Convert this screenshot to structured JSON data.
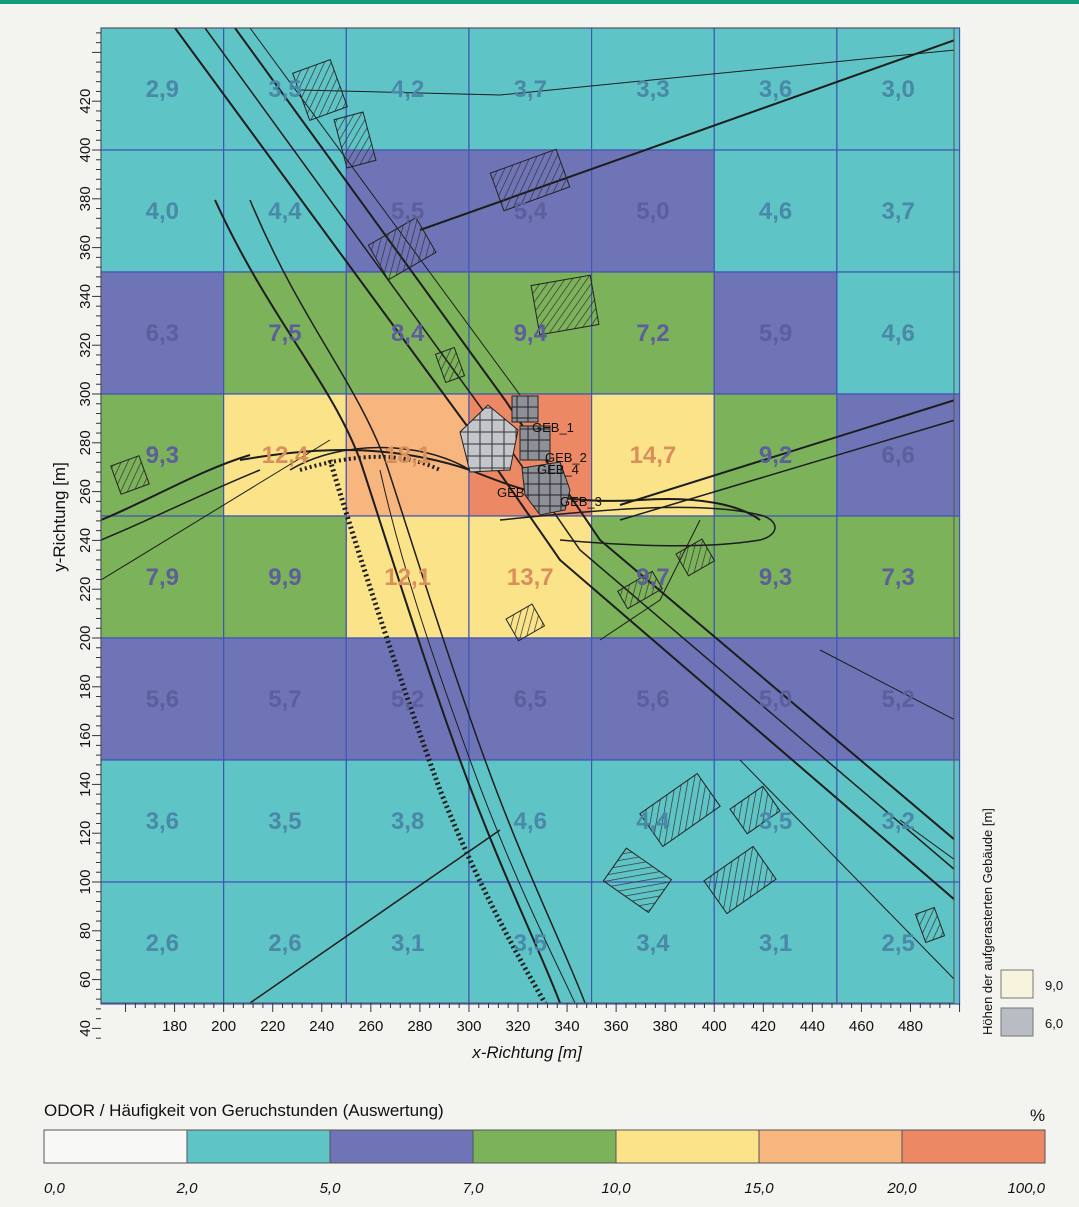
{
  "axes": {
    "x_title": "x-Richtung [m]",
    "y_title": "y-Richtung [m]",
    "x_ticks": [
      180,
      200,
      220,
      240,
      260,
      280,
      300,
      320,
      340,
      360,
      380,
      400,
      420,
      440,
      460,
      480
    ],
    "y_ticks": [
      40,
      60,
      80,
      100,
      120,
      140,
      160,
      180,
      200,
      220,
      240,
      260,
      280,
      300,
      320,
      340,
      360,
      380,
      400,
      420
    ]
  },
  "grid": {
    "x_edges": [
      150,
      200,
      250,
      300,
      350,
      400,
      450,
      500
    ],
    "y_edges": [
      450,
      400,
      350,
      300,
      250,
      200,
      150,
      100,
      50
    ],
    "values": [
      [
        "2,9",
        "3,5",
        "4,2",
        "3,7",
        "3,3",
        "3,6",
        "3,0"
      ],
      [
        "4,0",
        "4,4",
        "5,5",
        "5,4",
        "5,0",
        "4,6",
        "3,7"
      ],
      [
        "6,3",
        "7,5",
        "8,4",
        "9,4",
        "7,2",
        "5,9",
        "4,6"
      ],
      [
        "9,3",
        "12,4",
        "18,1",
        "",
        "14,7",
        "9,2",
        "6,6"
      ],
      [
        "7,9",
        "9,9",
        "12,1",
        "13,7",
        "9,7",
        "9,3",
        "7,3"
      ],
      [
        "5,6",
        "5,7",
        "5,2",
        "6,5",
        "5,6",
        "5,0",
        "5,2"
      ],
      [
        "3,6",
        "3,5",
        "3,8",
        "4,6",
        "4,4",
        "3,5",
        "3,2"
      ],
      [
        "2,6",
        "2,6",
        "3,1",
        "3,5",
        "3,4",
        "3,1",
        "2,5"
      ]
    ]
  },
  "buildings": [
    "GEB_1",
    "GEB_2",
    "GEB_3",
    "GEB_4",
    "GEB"
  ],
  "building_legend": {
    "title": "Höhen der aufgerasterten Gebäude [m]",
    "items": [
      {
        "label": "9,0",
        "color": "#f7f3dc"
      },
      {
        "label": "6,0",
        "color": "#b9bcc2"
      }
    ]
  },
  "scale": {
    "title": "ODOR / Häufigkeit von Geruchstunden (Auswertung)",
    "unit": "%",
    "bins": [
      {
        "from": 0,
        "to": 2,
        "color": "#f8f8f6"
      },
      {
        "from": 2,
        "to": 5,
        "color": "#5fc4c6"
      },
      {
        "from": 5,
        "to": 7,
        "color": "#6f74b6"
      },
      {
        "from": 7,
        "to": 10,
        "color": "#7cb25a"
      },
      {
        "from": 10,
        "to": 15,
        "color": "#fbe38a"
      },
      {
        "from": 15,
        "to": 20,
        "color": "#f7b67e"
      },
      {
        "from": 20,
        "to": 100,
        "color": "#ec8864"
      }
    ],
    "labels": [
      "0,0",
      "2,0",
      "5,0",
      "7,0",
      "10,0",
      "15,0",
      "20,0",
      "100,0"
    ]
  }
}
